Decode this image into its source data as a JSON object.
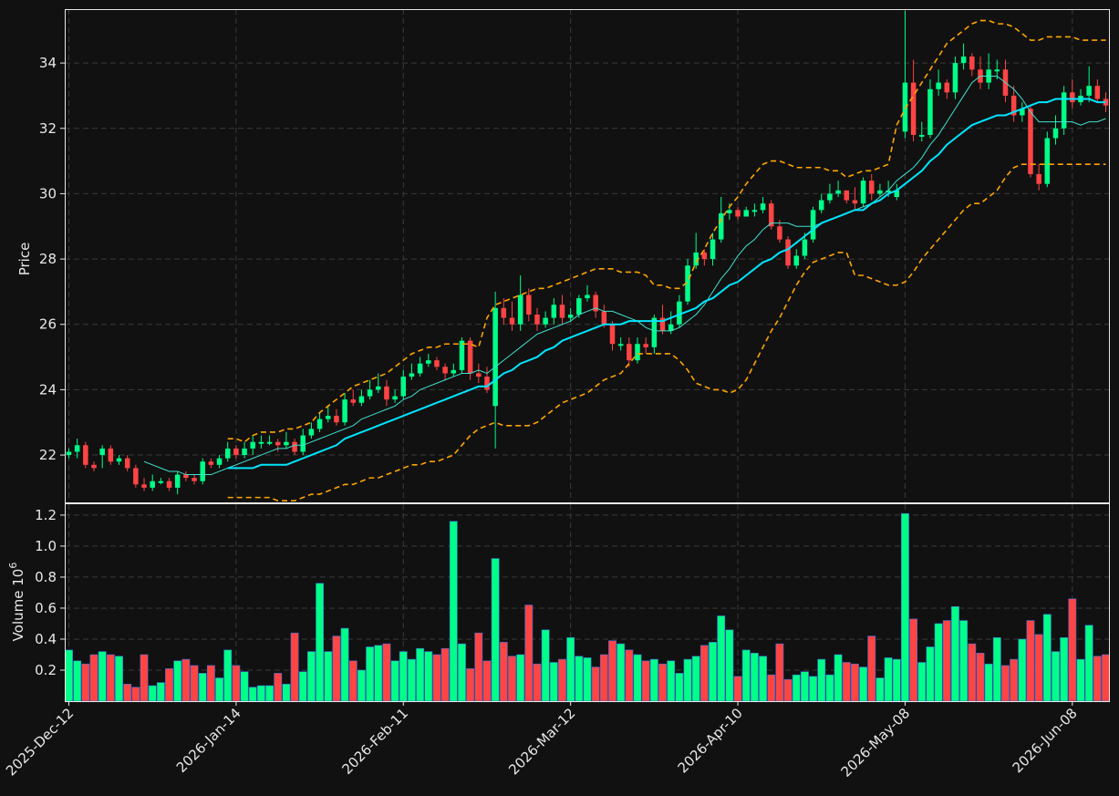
{
  "chart_data": {
    "type": "candlestick",
    "colors": {
      "background": "#111111",
      "up": "#00ff88",
      "down": "#ff4444",
      "ma_fast": "#40e0d0",
      "ma_slow": "#00e5ff",
      "bollinger": "#ffa500",
      "text": "#e8e8e8",
      "grid": "#3a3a3a"
    },
    "price_panel": {
      "ylabel": "Price",
      "ylim": [
        20.55,
        35.65
      ],
      "yticks": [
        22,
        24,
        26,
        28,
        30,
        32,
        34
      ]
    },
    "volume_panel": {
      "ylabel": "Volume",
      "scale_label": "10",
      "scale_exponent": "6",
      "ylim": [
        0,
        1.27
      ],
      "yticks": [
        "0.2",
        "0.4",
        "0.6",
        "0.8",
        "1.0",
        "1.2"
      ],
      "ytick_values": [
        0.2,
        0.4,
        0.6,
        0.8,
        1.0,
        1.2
      ]
    },
    "xticks": [
      {
        "index": 0,
        "label": "2025-Dec-12"
      },
      {
        "index": 20,
        "label": "2026-Jan-14"
      },
      {
        "index": 40,
        "label": "2026-Feb-11"
      },
      {
        "index": 60,
        "label": "2026-Mar-12"
      },
      {
        "index": 80,
        "label": "2026-Apr-10"
      },
      {
        "index": 100,
        "label": "2026-May-08"
      },
      {
        "index": 120,
        "label": "2026-Jun-08"
      }
    ],
    "close": [
      22.1,
      22.3,
      21.7,
      21.6,
      22.2,
      21.8,
      21.9,
      21.6,
      21.1,
      21.0,
      21.2,
      21.2,
      21.0,
      21.4,
      21.3,
      21.2,
      21.8,
      21.7,
      21.9,
      22.2,
      22.0,
      22.2,
      22.4,
      22.4,
      22.4,
      22.3,
      22.4,
      22.1,
      22.6,
      22.8,
      23.1,
      23.2,
      23.0,
      23.7,
      23.6,
      23.8,
      24.0,
      24.1,
      23.7,
      23.8,
      24.4,
      24.5,
      24.8,
      24.9,
      24.7,
      24.5,
      24.6,
      25.5,
      24.5,
      24.4,
      24.0,
      26.5,
      26.2,
      26.0,
      26.9,
      26.3,
      26.0,
      26.2,
      26.6,
      26.2,
      26.3,
      26.8,
      26.9,
      26.4,
      26.0,
      25.4,
      25.4,
      24.9,
      25.4,
      25.3,
      26.2,
      25.8,
      26.0,
      26.7,
      27.8,
      28.2,
      28.0,
      28.6,
      29.4,
      29.5,
      29.3,
      29.5,
      29.5,
      29.7,
      29.0,
      28.6,
      27.8,
      28.1,
      28.6,
      29.5,
      29.8,
      30.0,
      30.1,
      29.8,
      29.7,
      30.4,
      30.0,
      30.1,
      30.1,
      30.1,
      33.4,
      31.8,
      31.8,
      33.2,
      33.4,
      33.1,
      34.0,
      34.2,
      33.8,
      33.4,
      33.8,
      33.8,
      33.0,
      32.4,
      32.6,
      30.6,
      30.3,
      31.7,
      32.0,
      33.1,
      32.8,
      33.0,
      33.3,
      32.9,
      32.7
    ],
    "opens": [
      22.0,
      22.1,
      22.3,
      21.7,
      22.0,
      22.2,
      21.8,
      21.9,
      21.6,
      21.1,
      21.0,
      21.2,
      21.2,
      21.0,
      21.4,
      21.3,
      21.2,
      21.8,
      21.7,
      21.9,
      22.2,
      22.0,
      22.2,
      22.4,
      22.4,
      22.4,
      22.3,
      22.4,
      22.1,
      22.6,
      22.8,
      23.1,
      23.2,
      23.0,
      23.7,
      23.6,
      23.8,
      24.0,
      24.1,
      23.7,
      23.8,
      24.4,
      24.5,
      24.8,
      24.9,
      24.7,
      24.5,
      24.6,
      25.5,
      24.5,
      24.4,
      23.5,
      26.5,
      26.2,
      26.0,
      26.9,
      26.3,
      26.0,
      26.2,
      26.6,
      26.2,
      26.3,
      26.8,
      26.9,
      26.4,
      26.0,
      25.4,
      25.4,
      24.9,
      25.4,
      25.3,
      26.2,
      25.8,
      26.0,
      26.7,
      27.8,
      28.2,
      28.0,
      28.6,
      29.4,
      29.5,
      29.3,
      29.5,
      29.5,
      29.7,
      29.0,
      28.6,
      27.8,
      28.1,
      28.6,
      29.5,
      29.8,
      30.0,
      30.1,
      29.8,
      29.7,
      30.4,
      30.0,
      30.1,
      29.9,
      31.9,
      33.4,
      31.8,
      31.8,
      33.2,
      33.4,
      33.1,
      34.0,
      34.2,
      33.8,
      33.4,
      33.8,
      33.8,
      33.0,
      32.4,
      32.6,
      30.6,
      30.3,
      31.7,
      32.0,
      33.1,
      32.8,
      33.0,
      33.3,
      32.9
    ],
    "highs": [
      22.2,
      22.5,
      22.4,
      21.8,
      22.3,
      22.3,
      22.0,
      22.0,
      21.7,
      21.3,
      21.4,
      21.3,
      21.3,
      21.5,
      21.5,
      21.4,
      21.9,
      21.9,
      22.0,
      22.4,
      22.3,
      22.4,
      22.6,
      22.6,
      22.6,
      22.5,
      22.7,
      22.5,
      22.8,
      23.0,
      23.3,
      23.5,
      23.4,
      23.9,
      24.0,
      24.0,
      24.3,
      24.5,
      24.3,
      24.0,
      24.6,
      24.8,
      25.0,
      25.1,
      25.0,
      24.8,
      24.8,
      25.6,
      25.6,
      24.8,
      24.7,
      27.0,
      26.8,
      26.7,
      27.5,
      27.1,
      26.5,
      26.4,
      26.8,
      26.9,
      26.5,
      26.9,
      27.2,
      27.0,
      26.6,
      26.1,
      25.6,
      25.6,
      25.6,
      25.6,
      26.3,
      26.6,
      26.4,
      26.9,
      28.0,
      28.8,
      28.3,
      28.8,
      29.9,
      29.7,
      29.6,
      29.6,
      29.7,
      29.9,
      29.8,
      29.2,
      28.7,
      28.3,
      28.8,
      29.6,
      30.0,
      30.3,
      30.4,
      30.1,
      30.2,
      30.5,
      30.6,
      30.3,
      30.4,
      30.3,
      35.6,
      34.1,
      32.2,
      33.5,
      33.8,
      33.5,
      34.2,
      34.6,
      34.3,
      34.2,
      34.3,
      34.1,
      34.1,
      33.3,
      32.8,
      32.7,
      30.9,
      31.9,
      32.4,
      33.3,
      33.5,
      33.2,
      33.9,
      33.5,
      33.1
    ],
    "lows": [
      21.9,
      21.9,
      21.6,
      21.5,
      21.6,
      21.7,
      21.7,
      21.5,
      21.0,
      20.9,
      20.9,
      21.1,
      20.9,
      20.8,
      21.2,
      21.1,
      21.1,
      21.6,
      21.6,
      21.8,
      21.9,
      21.9,
      22.0,
      22.2,
      22.3,
      22.1,
      22.2,
      22.0,
      22.0,
      22.5,
      22.7,
      23.0,
      22.9,
      22.9,
      23.5,
      23.5,
      23.7,
      23.9,
      23.5,
      23.6,
      23.7,
      24.3,
      24.4,
      24.7,
      24.6,
      24.3,
      24.4,
      24.5,
      24.3,
      24.2,
      23.9,
      22.2,
      26.0,
      25.8,
      25.8,
      26.1,
      25.8,
      25.9,
      26.0,
      26.0,
      26.1,
      26.2,
      26.7,
      26.2,
      25.9,
      25.2,
      25.2,
      24.7,
      24.8,
      25.1,
      25.1,
      25.7,
      25.7,
      25.9,
      26.6,
      27.7,
      27.8,
      27.8,
      28.5,
      29.2,
      29.2,
      29.3,
      29.3,
      29.4,
      28.9,
      28.5,
      27.7,
      27.7,
      28.0,
      28.5,
      29.4,
      29.7,
      29.9,
      29.7,
      29.5,
      29.6,
      29.8,
      29.9,
      29.9,
      29.8,
      31.7,
      31.6,
      31.6,
      31.7,
      33.0,
      32.9,
      32.9,
      33.8,
      33.6,
      33.2,
      33.2,
      33.5,
      32.8,
      32.2,
      32.2,
      30.5,
      30.1,
      30.2,
      31.5,
      31.8,
      32.6,
      32.7,
      32.8,
      32.8,
      32.5
    ],
    "volume": [
      0.33,
      0.26,
      0.24,
      0.3,
      0.32,
      0.3,
      0.29,
      0.11,
      0.09,
      0.3,
      0.1,
      0.12,
      0.21,
      0.26,
      0.27,
      0.23,
      0.18,
      0.23,
      0.15,
      0.33,
      0.23,
      0.19,
      0.09,
      0.1,
      0.1,
      0.18,
      0.11,
      0.44,
      0.19,
      0.32,
      0.76,
      0.32,
      0.42,
      0.47,
      0.26,
      0.2,
      0.35,
      0.36,
      0.37,
      0.26,
      0.32,
      0.27,
      0.34,
      0.32,
      0.3,
      0.34,
      1.16,
      0.37,
      0.21,
      0.44,
      0.26,
      0.92,
      0.38,
      0.29,
      0.3,
      0.62,
      0.24,
      0.46,
      0.25,
      0.27,
      0.41,
      0.29,
      0.28,
      0.22,
      0.3,
      0.39,
      0.37,
      0.33,
      0.3,
      0.26,
      0.27,
      0.24,
      0.26,
      0.18,
      0.27,
      0.29,
      0.36,
      0.38,
      0.55,
      0.46,
      0.16,
      0.33,
      0.31,
      0.29,
      0.17,
      0.37,
      0.14,
      0.17,
      0.19,
      0.16,
      0.27,
      0.17,
      0.3,
      0.25,
      0.24,
      0.22,
      0.42,
      0.15,
      0.28,
      0.27,
      1.21,
      0.53,
      0.25,
      0.35,
      0.5,
      0.52,
      0.61,
      0.52,
      0.37,
      0.31,
      0.24,
      0.41,
      0.23,
      0.27,
      0.4,
      0.52,
      0.43,
      0.56,
      0.32,
      0.41,
      0.66,
      0.27,
      0.49,
      0.29,
      0.3
    ],
    "ma_fast": [
      null,
      null,
      null,
      null,
      null,
      null,
      null,
      null,
      null,
      21.8,
      21.7,
      21.6,
      21.5,
      21.5,
      21.4,
      21.4,
      21.4,
      21.4,
      21.5,
      21.6,
      21.7,
      21.8,
      21.9,
      22.0,
      22.1,
      22.2,
      22.2,
      22.3,
      22.3,
      22.4,
      22.5,
      22.6,
      22.7,
      22.8,
      22.9,
      23.1,
      23.2,
      23.3,
      23.4,
      23.5,
      23.7,
      23.8,
      24.0,
      24.1,
      24.2,
      24.3,
      24.4,
      24.5,
      24.5,
      24.6,
      24.5,
      24.7,
      24.9,
      25.1,
      25.3,
      25.5,
      25.7,
      25.8,
      25.9,
      26.0,
      26.1,
      26.3,
      26.4,
      26.5,
      26.4,
      26.4,
      26.3,
      26.2,
      26.1,
      25.9,
      25.8,
      25.8,
      25.8,
      25.9,
      26.1,
      26.3,
      26.6,
      27.0,
      27.4,
      27.7,
      28.1,
      28.4,
      28.6,
      28.9,
      29.1,
      29.1,
      29.1,
      29.0,
      29.0,
      29.0,
      29.1,
      29.2,
      29.3,
      29.4,
      29.5,
      29.6,
      29.7,
      29.9,
      30.1,
      30.4,
      30.6,
      30.8,
      31.1,
      31.5,
      31.8,
      32.2,
      32.6,
      33.0,
      33.4,
      33.6,
      33.6,
      33.6,
      33.4,
      33.2,
      32.9,
      32.5,
      32.2,
      32.2,
      32.2,
      32.2,
      32.2,
      32.1,
      32.2,
      32.2,
      32.3
    ],
    "ma_slow": [
      null,
      null,
      null,
      null,
      null,
      null,
      null,
      null,
      null,
      null,
      null,
      null,
      null,
      null,
      null,
      null,
      null,
      null,
      null,
      21.6,
      21.6,
      21.6,
      21.6,
      21.7,
      21.7,
      21.7,
      21.7,
      21.8,
      21.9,
      22.0,
      22.1,
      22.2,
      22.3,
      22.5,
      22.6,
      22.7,
      22.8,
      22.9,
      23.0,
      23.1,
      23.2,
      23.3,
      23.4,
      23.5,
      23.6,
      23.7,
      23.8,
      23.9,
      24.0,
      24.1,
      24.1,
      24.3,
      24.5,
      24.6,
      24.8,
      24.9,
      25.0,
      25.2,
      25.3,
      25.5,
      25.6,
      25.7,
      25.8,
      25.9,
      26.0,
      26.0,
      26.0,
      26.1,
      26.1,
      26.1,
      26.1,
      26.1,
      26.2,
      26.3,
      26.4,
      26.5,
      26.7,
      26.8,
      27.0,
      27.2,
      27.3,
      27.5,
      27.7,
      27.9,
      28.0,
      28.2,
      28.3,
      28.5,
      28.7,
      28.9,
      29.1,
      29.2,
      29.3,
      29.4,
      29.5,
      29.5,
      29.7,
      29.8,
      30.0,
      30.1,
      30.3,
      30.5,
      30.7,
      31.0,
      31.2,
      31.5,
      31.7,
      31.9,
      32.1,
      32.2,
      32.3,
      32.4,
      32.4,
      32.5,
      32.6,
      32.7,
      32.8,
      32.8,
      32.9,
      32.9,
      32.9,
      32.9,
      32.9,
      32.8,
      32.8
    ],
    "bb_upper": [
      null,
      null,
      null,
      null,
      null,
      null,
      null,
      null,
      null,
      null,
      null,
      null,
      null,
      null,
      null,
      null,
      null,
      null,
      null,
      22.5,
      22.5,
      22.4,
      22.6,
      22.7,
      22.7,
      22.7,
      22.8,
      22.8,
      22.9,
      23.0,
      23.3,
      23.5,
      23.7,
      23.9,
      24.1,
      24.2,
      24.3,
      24.4,
      24.5,
      24.7,
      24.9,
      25.1,
      25.2,
      25.3,
      25.3,
      25.4,
      25.4,
      25.4,
      25.4,
      25.3,
      26.2,
      26.6,
      26.7,
      26.8,
      26.9,
      27.0,
      27.1,
      27.1,
      27.2,
      27.3,
      27.4,
      27.5,
      27.6,
      27.7,
      27.7,
      27.7,
      27.6,
      27.6,
      27.6,
      27.5,
      27.2,
      27.2,
      27.1,
      27.1,
      27.3,
      27.9,
      28.3,
      28.8,
      29.2,
      29.6,
      29.9,
      30.3,
      30.6,
      30.9,
      31.0,
      31.0,
      30.9,
      30.8,
      30.8,
      30.8,
      30.8,
      30.7,
      30.7,
      30.5,
      30.6,
      30.7,
      30.7,
      30.8,
      30.9,
      32.1,
      32.6,
      33.0,
      33.4,
      33.8,
      34.2,
      34.6,
      34.8,
      35.0,
      35.2,
      35.3,
      35.3,
      35.2,
      35.2,
      35.1,
      34.9,
      34.7,
      34.7,
      34.8,
      34.8,
      34.8,
      34.8,
      34.7,
      34.7,
      34.7,
      34.7
    ],
    "bb_lower": [
      null,
      null,
      null,
      null,
      null,
      null,
      null,
      null,
      null,
      null,
      null,
      null,
      null,
      null,
      null,
      null,
      null,
      null,
      null,
      20.7,
      20.7,
      20.7,
      20.7,
      20.7,
      20.7,
      20.6,
      20.6,
      20.6,
      20.7,
      20.8,
      20.8,
      20.9,
      21.0,
      21.1,
      21.1,
      21.2,
      21.3,
      21.3,
      21.4,
      21.5,
      21.6,
      21.7,
      21.7,
      21.8,
      21.8,
      21.9,
      22.0,
      22.3,
      22.6,
      22.8,
      22.9,
      23.0,
      22.9,
      22.9,
      22.9,
      22.9,
      23.0,
      23.2,
      23.4,
      23.6,
      23.7,
      23.8,
      23.9,
      24.1,
      24.3,
      24.4,
      24.5,
      24.8,
      25.1,
      25.1,
      25.1,
      25.1,
      25.1,
      24.9,
      24.6,
      24.2,
      24.1,
      24.0,
      24.0,
      23.9,
      24.0,
      24.3,
      24.8,
      25.3,
      25.8,
      26.2,
      26.7,
      27.2,
      27.6,
      27.9,
      28.0,
      28.1,
      28.2,
      28.2,
      27.5,
      27.5,
      27.4,
      27.3,
      27.2,
      27.2,
      27.3,
      27.6,
      28.0,
      28.3,
      28.6,
      28.9,
      29.2,
      29.5,
      29.7,
      29.7,
      29.9,
      30.1,
      30.5,
      30.8,
      30.9,
      30.9,
      30.9,
      30.9,
      30.9,
      30.9,
      30.9,
      30.9,
      30.9,
      30.9,
      30.9
    ]
  }
}
